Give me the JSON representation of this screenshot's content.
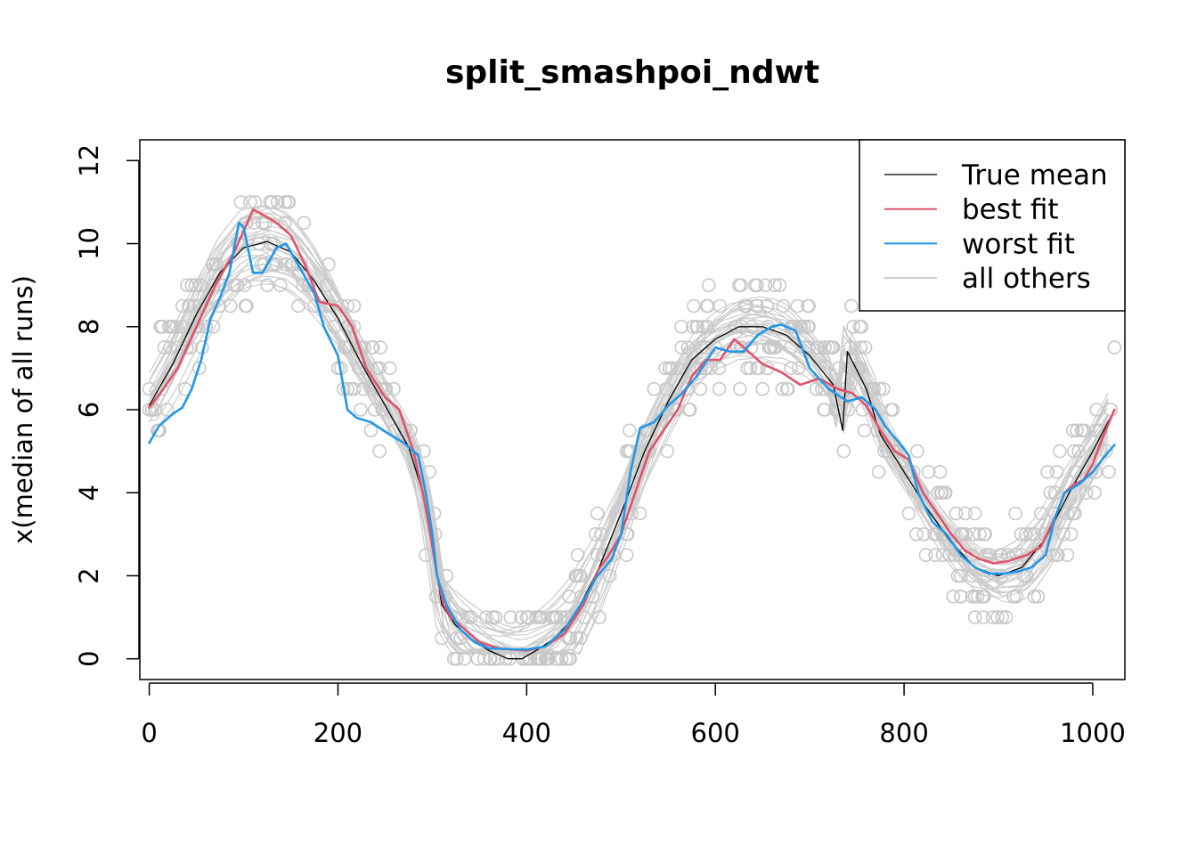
{
  "chart_data": {
    "type": "line",
    "title": "split_smashpoi_ndwt",
    "xlabel": "",
    "ylabel": "x(median of all runs)",
    "xlim": [
      -10,
      1034
    ],
    "ylim": [
      -0.5,
      12.5
    ],
    "xticks": [
      0,
      200,
      400,
      600,
      800,
      1000
    ],
    "yticks": [
      0,
      2,
      4,
      6,
      8,
      10,
      12
    ],
    "legend": {
      "position": "top-right",
      "entries": [
        {
          "label": "True mean",
          "color": "#000000"
        },
        {
          "label": "best fit",
          "color": "#DF536B"
        },
        {
          "label": "worst fit",
          "color": "#2297E6"
        },
        {
          "label": "all others",
          "color": "#CCCCCC"
        }
      ]
    },
    "series": [
      {
        "name": "True mean",
        "color": "#000000",
        "points": [
          [
            0,
            6.1
          ],
          [
            25,
            7.1
          ],
          [
            50,
            8.3
          ],
          [
            75,
            9.3
          ],
          [
            100,
            9.9
          ],
          [
            125,
            10.05
          ],
          [
            150,
            9.8
          ],
          [
            175,
            9.1
          ],
          [
            200,
            8.2
          ],
          [
            225,
            7.1
          ],
          [
            250,
            6.1
          ],
          [
            275,
            5.1
          ],
          [
            290,
            4.0
          ],
          [
            300,
            2.8
          ],
          [
            310,
            1.3
          ],
          [
            325,
            0.8
          ],
          [
            340,
            0.5
          ],
          [
            360,
            0.2
          ],
          [
            380,
            0.0
          ],
          [
            395,
            0.0
          ],
          [
            410,
            0.2
          ],
          [
            430,
            0.5
          ],
          [
            450,
            1.0
          ],
          [
            475,
            2.1
          ],
          [
            500,
            3.5
          ],
          [
            525,
            5.0
          ],
          [
            550,
            6.2
          ],
          [
            575,
            7.2
          ],
          [
            600,
            7.7
          ],
          [
            625,
            8.0
          ],
          [
            650,
            8.0
          ],
          [
            675,
            7.8
          ],
          [
            700,
            7.3
          ],
          [
            725,
            6.6
          ],
          [
            735,
            5.5
          ],
          [
            740,
            7.4
          ],
          [
            760,
            6.5
          ],
          [
            775,
            5.4
          ],
          [
            800,
            4.5
          ],
          [
            825,
            3.6
          ],
          [
            850,
            2.8
          ],
          [
            875,
            2.2
          ],
          [
            900,
            2.0
          ],
          [
            925,
            2.2
          ],
          [
            950,
            2.9
          ],
          [
            975,
            4.0
          ],
          [
            1000,
            5.0
          ],
          [
            1023,
            6.0
          ]
        ]
      },
      {
        "name": "best fit",
        "color": "#DF536B",
        "points": [
          [
            0,
            6.05
          ],
          [
            15,
            6.5
          ],
          [
            30,
            7.0
          ],
          [
            50,
            8.0
          ],
          [
            70,
            9.0
          ],
          [
            90,
            9.8
          ],
          [
            100,
            10.3
          ],
          [
            110,
            10.82
          ],
          [
            120,
            10.7
          ],
          [
            135,
            10.5
          ],
          [
            150,
            10.2
          ],
          [
            165,
            9.5
          ],
          [
            180,
            8.6
          ],
          [
            200,
            8.5
          ],
          [
            215,
            8.0
          ],
          [
            230,
            7.0
          ],
          [
            250,
            6.3
          ],
          [
            265,
            6.0
          ],
          [
            280,
            5.0
          ],
          [
            290,
            4.0
          ],
          [
            298,
            3.0
          ],
          [
            305,
            2.0
          ],
          [
            312,
            1.3
          ],
          [
            320,
            1.0
          ],
          [
            335,
            0.7
          ],
          [
            350,
            0.4
          ],
          [
            370,
            0.25
          ],
          [
            400,
            0.2
          ],
          [
            420,
            0.3
          ],
          [
            440,
            0.6
          ],
          [
            460,
            1.3
          ],
          [
            475,
            2.1
          ],
          [
            490,
            2.6
          ],
          [
            500,
            3.0
          ],
          [
            515,
            4.0
          ],
          [
            530,
            5.0
          ],
          [
            545,
            5.5
          ],
          [
            560,
            6.0
          ],
          [
            575,
            6.8
          ],
          [
            590,
            7.2
          ],
          [
            605,
            7.2
          ],
          [
            620,
            7.7
          ],
          [
            635,
            7.4
          ],
          [
            650,
            7.1
          ],
          [
            670,
            6.9
          ],
          [
            690,
            6.6
          ],
          [
            710,
            6.75
          ],
          [
            730,
            6.5
          ],
          [
            745,
            6.4
          ],
          [
            760,
            6.1
          ],
          [
            775,
            5.5
          ],
          [
            790,
            5.0
          ],
          [
            805,
            4.8
          ],
          [
            820,
            4.0
          ],
          [
            835,
            3.5
          ],
          [
            850,
            3.0
          ],
          [
            865,
            2.6
          ],
          [
            880,
            2.4
          ],
          [
            895,
            2.3
          ],
          [
            910,
            2.35
          ],
          [
            930,
            2.5
          ],
          [
            945,
            2.7
          ],
          [
            960,
            3.4
          ],
          [
            970,
            4.0
          ],
          [
            980,
            4.2
          ],
          [
            990,
            4.3
          ],
          [
            1000,
            4.7
          ],
          [
            1010,
            5.3
          ],
          [
            1023,
            6.0
          ]
        ]
      },
      {
        "name": "worst fit",
        "color": "#2297E6",
        "points": [
          [
            0,
            5.2
          ],
          [
            10,
            5.6
          ],
          [
            25,
            5.9
          ],
          [
            35,
            6.05
          ],
          [
            45,
            6.5
          ],
          [
            55,
            7.2
          ],
          [
            65,
            8.2
          ],
          [
            75,
            8.7
          ],
          [
            85,
            9.3
          ],
          [
            95,
            10.5
          ],
          [
            100,
            10.4
          ],
          [
            110,
            9.3
          ],
          [
            120,
            9.3
          ],
          [
            135,
            9.9
          ],
          [
            145,
            10.0
          ],
          [
            155,
            9.6
          ],
          [
            165,
            9.2
          ],
          [
            175,
            8.8
          ],
          [
            185,
            8.0
          ],
          [
            200,
            7.3
          ],
          [
            210,
            6.0
          ],
          [
            220,
            5.8
          ],
          [
            235,
            5.7
          ],
          [
            255,
            5.4
          ],
          [
            270,
            5.2
          ],
          [
            285,
            4.9
          ],
          [
            293,
            4.0
          ],
          [
            300,
            3.0
          ],
          [
            305,
            2.0
          ],
          [
            315,
            1.3
          ],
          [
            330,
            0.7
          ],
          [
            345,
            0.4
          ],
          [
            360,
            0.25
          ],
          [
            400,
            0.22
          ],
          [
            420,
            0.3
          ],
          [
            440,
            0.7
          ],
          [
            460,
            1.4
          ],
          [
            475,
            2.0
          ],
          [
            490,
            2.4
          ],
          [
            500,
            3.0
          ],
          [
            510,
            4.5
          ],
          [
            520,
            5.55
          ],
          [
            535,
            5.7
          ],
          [
            550,
            6.1
          ],
          [
            565,
            6.4
          ],
          [
            580,
            6.8
          ],
          [
            600,
            7.5
          ],
          [
            615,
            7.4
          ],
          [
            630,
            7.4
          ],
          [
            645,
            7.8
          ],
          [
            660,
            8.0
          ],
          [
            670,
            8.05
          ],
          [
            685,
            7.9
          ],
          [
            700,
            7.0
          ],
          [
            720,
            6.5
          ],
          [
            740,
            6.2
          ],
          [
            755,
            6.3
          ],
          [
            770,
            6.0
          ],
          [
            780,
            5.6
          ],
          [
            795,
            5.2
          ],
          [
            805,
            4.9
          ],
          [
            815,
            4.0
          ],
          [
            830,
            3.3
          ],
          [
            845,
            3.0
          ],
          [
            860,
            2.5
          ],
          [
            875,
            2.2
          ],
          [
            890,
            2.05
          ],
          [
            905,
            2.05
          ],
          [
            920,
            2.1
          ],
          [
            935,
            2.2
          ],
          [
            950,
            2.5
          ],
          [
            960,
            3.4
          ],
          [
            970,
            4.0
          ],
          [
            985,
            4.2
          ],
          [
            1000,
            4.5
          ],
          [
            1010,
            4.8
          ],
          [
            1023,
            5.15
          ]
        ]
      }
    ]
  }
}
